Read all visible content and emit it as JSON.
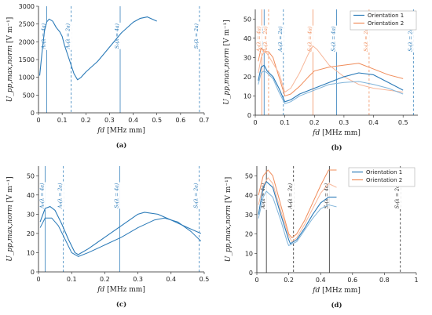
{
  "colors": {
    "blue": "#2a7ab8",
    "orange": "#f08c5a",
    "blue_light": "#7fb3d9",
    "orange_light": "#f7b79a",
    "black": "#222222"
  },
  "chart_data": [
    {
      "id": "a",
      "panel_label": "(a)",
      "type": "line",
      "xlabel": "fd [MHz mm]",
      "ylabel": "U_pp,max,norm [V m⁻¹]",
      "xlim": [
        0,
        0.7
      ],
      "ylim": [
        0,
        3000
      ],
      "xticks": [
        0,
        0.1,
        0.2,
        0.3,
        0.4,
        0.5,
        0.6,
        0.7
      ],
      "yticks": [
        0,
        500,
        1000,
        1500,
        2000,
        2500,
        3000
      ],
      "xtick_labels": [
        "0",
        "0.1",
        "0.2",
        "0.3",
        "0.4",
        "0.5",
        "0.6",
        "0.7"
      ],
      "ytick_labels": [
        "0",
        "500",
        "1000",
        "1500",
        "2000",
        "2500",
        "3000"
      ],
      "legend": [],
      "series": [
        {
          "color": "blue",
          "width": 1.1,
          "points": [
            [
              0.005,
              1050
            ],
            [
              0.015,
              1700
            ],
            [
              0.025,
              2300
            ],
            [
              0.035,
              2560
            ],
            [
              0.045,
              2640
            ],
            [
              0.06,
              2580
            ],
            [
              0.075,
              2400
            ],
            [
              0.09,
              2280
            ],
            [
              0.1,
              2150
            ],
            [
              0.11,
              1900
            ],
            [
              0.13,
              1500
            ],
            [
              0.15,
              1100
            ],
            [
              0.165,
              930
            ],
            [
              0.18,
              1000
            ],
            [
              0.2,
              1150
            ],
            [
              0.25,
              1450
            ],
            [
              0.3,
              1850
            ],
            [
              0.35,
              2250
            ],
            [
              0.4,
              2550
            ],
            [
              0.43,
              2660
            ],
            [
              0.46,
              2700
            ],
            [
              0.48,
              2640
            ],
            [
              0.5,
              2580
            ]
          ]
        }
      ],
      "vlines": [
        {
          "x": 0.035,
          "style": "solid",
          "color": "blue",
          "label": "A₀(λ = 4a)"
        },
        {
          "x": 0.138,
          "style": "dashed",
          "color": "blue",
          "label": "A₀(λ = 2a)"
        },
        {
          "x": 0.345,
          "style": "solid",
          "color": "blue",
          "label": "S₀(λ = 4a)"
        },
        {
          "x": 0.68,
          "style": "dashed",
          "color": "blue",
          "label": "S₀(λ = 2a)"
        }
      ]
    },
    {
      "id": "b",
      "panel_label": "(b)",
      "type": "line",
      "xlabel": "fd [MHz mm]",
      "ylabel": "U_pp,max,norm [V m⁻¹]",
      "xlim": [
        0,
        0.55
      ],
      "ylim": [
        0,
        55
      ],
      "xticks": [
        0,
        0.1,
        0.2,
        0.3,
        0.4,
        0.5
      ],
      "yticks": [
        0,
        10,
        20,
        30,
        40,
        50
      ],
      "xtick_labels": [
        "0",
        "0.1",
        "0.2",
        "0.3",
        "0.4",
        "0.5"
      ],
      "ytick_labels": [
        "0",
        "10",
        "20",
        "30",
        "40",
        "50"
      ],
      "legend": [
        {
          "label": "Orientation 1",
          "color": "blue"
        },
        {
          "label": "Orientation 2",
          "color": "orange"
        }
      ],
      "series": [
        {
          "color": "orange",
          "width": 1.0,
          "points": [
            [
              0.01,
              28
            ],
            [
              0.02,
              35
            ],
            [
              0.03,
              33
            ],
            [
              0.045,
              33
            ],
            [
              0.06,
              30
            ],
            [
              0.08,
              20
            ],
            [
              0.1,
              10
            ],
            [
              0.12,
              11
            ],
            [
              0.15,
              15
            ],
            [
              0.18,
              20
            ],
            [
              0.2,
              23
            ],
            [
              0.25,
              25
            ],
            [
              0.3,
              26
            ],
            [
              0.35,
              27
            ],
            [
              0.4,
              24
            ],
            [
              0.45,
              21
            ],
            [
              0.5,
              19
            ]
          ]
        },
        {
          "color": "orange_light",
          "width": 1.0,
          "points": [
            [
              0.01,
              22
            ],
            [
              0.02,
              30
            ],
            [
              0.03,
              33
            ],
            [
              0.04,
              32
            ],
            [
              0.06,
              27
            ],
            [
              0.08,
              22
            ],
            [
              0.1,
              12
            ],
            [
              0.12,
              14
            ],
            [
              0.15,
              22
            ],
            [
              0.18,
              32
            ],
            [
              0.195,
              36
            ],
            [
              0.21,
              34
            ],
            [
              0.25,
              26
            ],
            [
              0.3,
              20
            ],
            [
              0.35,
              16
            ],
            [
              0.4,
              14
            ],
            [
              0.5,
              12
            ]
          ]
        },
        {
          "color": "blue",
          "width": 1.1,
          "points": [
            [
              0.01,
              18
            ],
            [
              0.02,
              25
            ],
            [
              0.03,
              26
            ],
            [
              0.04,
              23
            ],
            [
              0.06,
              20
            ],
            [
              0.08,
              14
            ],
            [
              0.1,
              7
            ],
            [
              0.12,
              8
            ],
            [
              0.15,
              11
            ],
            [
              0.2,
              14
            ],
            [
              0.25,
              17
            ],
            [
              0.3,
              20
            ],
            [
              0.35,
              22
            ],
            [
              0.4,
              21
            ],
            [
              0.45,
              17
            ],
            [
              0.5,
              13
            ]
          ]
        },
        {
          "color": "blue_light",
          "width": 1.0,
          "points": [
            [
              0.01,
              16
            ],
            [
              0.02,
              22
            ],
            [
              0.03,
              23
            ],
            [
              0.04,
              22
            ],
            [
              0.06,
              19
            ],
            [
              0.08,
              12
            ],
            [
              0.1,
              6
            ],
            [
              0.12,
              7
            ],
            [
              0.15,
              10
            ],
            [
              0.2,
              13
            ],
            [
              0.25,
              16
            ],
            [
              0.3,
              17
            ],
            [
              0.35,
              17.5
            ],
            [
              0.4,
              16
            ],
            [
              0.45,
              14
            ],
            [
              0.5,
              11
            ]
          ]
        }
      ],
      "vlines": [
        {
          "x": 0.03,
          "style": "solid",
          "color": "blue",
          "label": "A₀(λ = 4a)"
        },
        {
          "x": 0.095,
          "style": "dashed",
          "color": "blue",
          "label": "A₀(λ = 2a)"
        },
        {
          "x": 0.275,
          "style": "solid",
          "color": "blue",
          "label": "S₀(λ = 4a)"
        },
        {
          "x": 0.535,
          "style": "dashed",
          "color": "blue",
          "label": "S₀(λ = 2a)"
        },
        {
          "x": 0.022,
          "style": "solid",
          "color": "orange",
          "label": "A₀(λ = 4a)"
        },
        {
          "x": 0.045,
          "style": "dashed",
          "color": "orange",
          "label": "A₀(λ = 2a)"
        },
        {
          "x": 0.195,
          "style": "solid",
          "color": "orange",
          "label": "S₀(λ = 4a)"
        },
        {
          "x": 0.385,
          "style": "dashed",
          "color": "orange",
          "label": "S₀(λ = 2a)"
        }
      ]
    },
    {
      "id": "c",
      "panel_label": "(c)",
      "type": "line",
      "xlabel": "fd [MHz mm]",
      "ylabel": "U_pp,max,norm [V m⁻¹]",
      "xlim": [
        0,
        0.5
      ],
      "ylim": [
        0,
        55
      ],
      "xticks": [
        0,
        0.1,
        0.2,
        0.3,
        0.4,
        0.5
      ],
      "yticks": [
        0,
        10,
        20,
        30,
        40,
        50
      ],
      "xtick_labels": [
        "0",
        "0.1",
        "0.2",
        "0.3",
        "0.4",
        "0.5"
      ],
      "ytick_labels": [
        "0",
        "10",
        "20",
        "30",
        "40",
        "50"
      ],
      "legend": [],
      "series": [
        {
          "color": "blue",
          "width": 1.1,
          "points": [
            [
              0.005,
              26
            ],
            [
              0.02,
              33
            ],
            [
              0.035,
              34
            ],
            [
              0.05,
              32
            ],
            [
              0.07,
              25
            ],
            [
              0.09,
              17
            ],
            [
              0.11,
              10
            ],
            [
              0.12,
              9
            ],
            [
              0.15,
              12
            ],
            [
              0.2,
              18
            ],
            [
              0.25,
              24
            ],
            [
              0.3,
              30
            ],
            [
              0.32,
              31
            ],
            [
              0.36,
              30
            ],
            [
              0.4,
              27
            ],
            [
              0.45,
              23
            ],
            [
              0.49,
              20
            ]
          ]
        },
        {
          "color": "blue",
          "width": 1.0,
          "points": [
            [
              0.005,
              23
            ],
            [
              0.02,
              28
            ],
            [
              0.04,
              28
            ],
            [
              0.06,
              24
            ],
            [
              0.08,
              17
            ],
            [
              0.1,
              10
            ],
            [
              0.12,
              8
            ],
            [
              0.15,
              10
            ],
            [
              0.2,
              14
            ],
            [
              0.25,
              18
            ],
            [
              0.3,
              23
            ],
            [
              0.35,
              27
            ],
            [
              0.38,
              28
            ],
            [
              0.42,
              26
            ],
            [
              0.46,
              21
            ],
            [
              0.49,
              16
            ]
          ]
        }
      ],
      "vlines": [
        {
          "x": 0.02,
          "style": "solid",
          "color": "blue",
          "label": "A₀(λ = 4a)"
        },
        {
          "x": 0.075,
          "style": "dashed",
          "color": "blue",
          "label": "A₀(λ = 2a)"
        },
        {
          "x": 0.245,
          "style": "solid",
          "color": "blue",
          "label": "S₀(λ = 4a)"
        },
        {
          "x": 0.485,
          "style": "dashed",
          "color": "blue",
          "label": "S₀(λ = 2a)"
        }
      ]
    },
    {
      "id": "d",
      "panel_label": "(d)",
      "type": "line",
      "xlabel": "fd [MHz mm]",
      "ylabel": "U_pp,max,norm [V m⁻¹]",
      "xlim": [
        0,
        1
      ],
      "ylim": [
        0,
        55
      ],
      "xticks": [
        0,
        0.2,
        0.4,
        0.6,
        0.8,
        1
      ],
      "yticks": [
        0,
        10,
        20,
        30,
        40,
        50
      ],
      "xtick_labels": [
        "0",
        "0.2",
        "0.4",
        "0.6",
        "0.8",
        "1"
      ],
      "ytick_labels": [
        "0",
        "10",
        "20",
        "30",
        "40",
        "50"
      ],
      "legend": [
        {
          "label": "Orientation 1",
          "color": "blue"
        },
        {
          "label": "Orientation 2",
          "color": "orange"
        }
      ],
      "series": [
        {
          "color": "orange",
          "width": 1.0,
          "points": [
            [
              0.01,
              40
            ],
            [
              0.04,
              50
            ],
            [
              0.07,
              53
            ],
            [
              0.1,
              50
            ],
            [
              0.15,
              35
            ],
            [
              0.2,
              20
            ],
            [
              0.22,
              18
            ],
            [
              0.25,
              20
            ],
            [
              0.3,
              27
            ],
            [
              0.35,
              36
            ],
            [
              0.4,
              45
            ],
            [
              0.45,
              53
            ],
            [
              0.5,
              53
            ]
          ]
        },
        {
          "color": "orange_light",
          "width": 1.0,
          "points": [
            [
              0.01,
              35
            ],
            [
              0.04,
              45
            ],
            [
              0.07,
              49
            ],
            [
              0.1,
              46
            ],
            [
              0.15,
              32
            ],
            [
              0.2,
              19
            ],
            [
              0.22,
              16
            ],
            [
              0.25,
              18
            ],
            [
              0.3,
              25
            ],
            [
              0.35,
              33
            ],
            [
              0.4,
              41
            ],
            [
              0.45,
              46
            ],
            [
              0.5,
              44
            ]
          ]
        },
        {
          "color": "blue",
          "width": 1.1,
          "points": [
            [
              0.01,
              30
            ],
            [
              0.04,
              44
            ],
            [
              0.06,
              47
            ],
            [
              0.1,
              44
            ],
            [
              0.15,
              30
            ],
            [
              0.2,
              17
            ],
            [
              0.21,
              15
            ],
            [
              0.25,
              17
            ],
            [
              0.3,
              23
            ],
            [
              0.35,
              30
            ],
            [
              0.4,
              36
            ],
            [
              0.45,
              39
            ],
            [
              0.5,
              39
            ]
          ]
        },
        {
          "color": "blue_light",
          "width": 1.0,
          "points": [
            [
              0.01,
              28
            ],
            [
              0.04,
              39
            ],
            [
              0.06,
              42
            ],
            [
              0.1,
              39
            ],
            [
              0.15,
              27
            ],
            [
              0.19,
              16
            ],
            [
              0.2,
              14
            ],
            [
              0.25,
              16
            ],
            [
              0.3,
              22
            ],
            [
              0.35,
              28
            ],
            [
              0.4,
              33
            ],
            [
              0.45,
              35
            ],
            [
              0.5,
              34
            ]
          ]
        }
      ],
      "vlines": [
        {
          "x": 0.06,
          "style": "solid",
          "color": "black",
          "label": "A₀(λ = 4a)"
        },
        {
          "x": 0.23,
          "style": "dashed",
          "color": "black",
          "label": "A₀(λ = 2a)"
        },
        {
          "x": 0.455,
          "style": "solid",
          "color": "black",
          "label": "S₀(λ = 4a)"
        },
        {
          "x": 0.9,
          "style": "dashed",
          "color": "black",
          "label": "S₀(λ = 2a)"
        }
      ]
    }
  ]
}
